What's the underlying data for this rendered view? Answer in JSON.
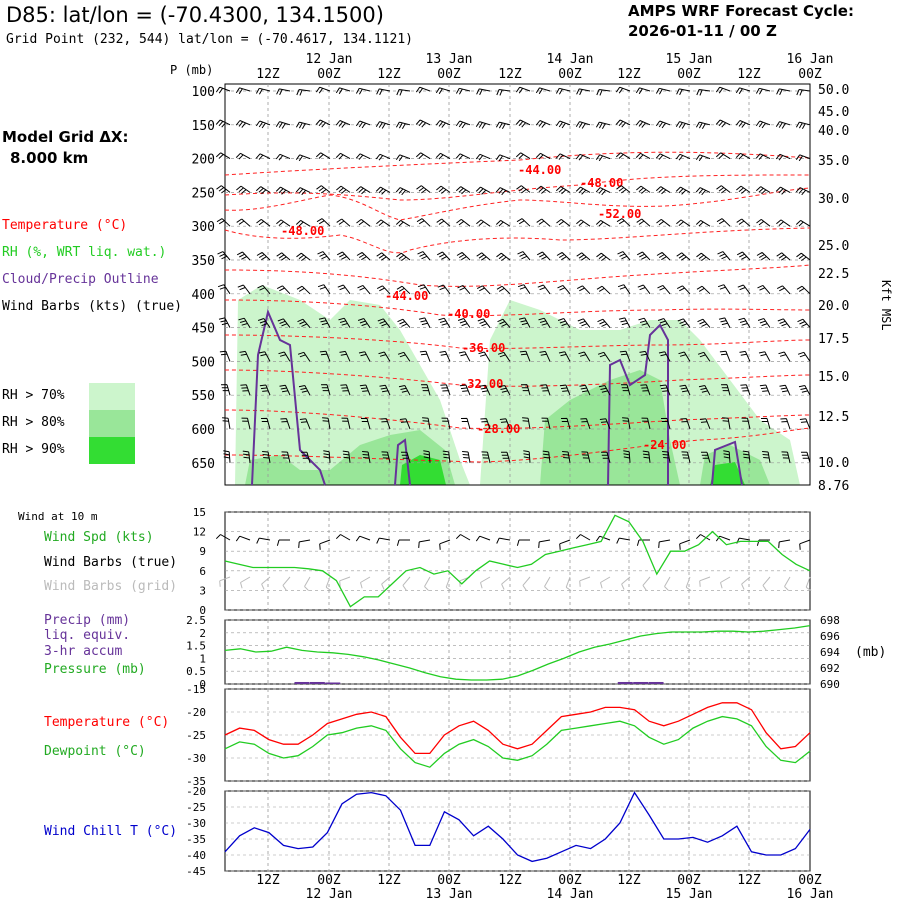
{
  "header": {
    "title": "D85:  lat/lon = (-70.4300, 134.1500)",
    "gridpoint": "Grid Point (232, 544) lat/lon = (-70.4617, 134.1121)",
    "cycle_title": "AMPS WRF Forecast Cycle:",
    "cycle_value": "2026-01-11 / 00  Z"
  },
  "legend": {
    "model_grid": "Model Grid ΔX:",
    "model_dx": "8.000 km",
    "temperature": "Temperature (°C)",
    "rh": "RH (%, WRT liq. wat.)",
    "cloud": "Cloud/Precip Outline",
    "wind_barbs": "Wind Barbs (kts) (true)",
    "rh_levels": [
      {
        "label": "RH > 70%",
        "color": "#ccf5cc"
      },
      {
        "label": "RH > 80%",
        "color": "#99e699"
      },
      {
        "label": "RH > 90%",
        "color": "#33dd33"
      }
    ]
  },
  "colors": {
    "temperature": "#ff0000",
    "dewpoint": "#22cc22",
    "rh_contour": "#ff2222",
    "cloud_outline": "#663399",
    "wind_chill": "#0000cc",
    "grid": "#999999"
  },
  "chart_data": [
    {
      "type": "heatmap",
      "ylabel_left": "P (mb)",
      "ylabel_right": "Kft MSL",
      "x_ticks_top": [
        "12Z",
        "00Z",
        "12Z",
        "00Z",
        "12Z",
        "00Z",
        "12Z",
        "00Z",
        "12Z",
        "00Z"
      ],
      "x_dates_top": [
        "12 Jan",
        "13 Jan",
        "14 Jan",
        "15 Jan",
        "16 Jan"
      ],
      "pressure_levels": [
        100,
        150,
        200,
        250,
        300,
        350,
        400,
        450,
        500,
        550,
        600,
        650
      ],
      "height_ticks": [
        "50.0",
        "45.0",
        "40.0",
        "35.0",
        "30.0",
        "25.0",
        "22.5",
        "20.0",
        "17.5",
        "15.0",
        "12.5",
        "10.0",
        "8.76"
      ],
      "temperature_labels": [
        "-44.00",
        "-48.00",
        "-52.00",
        "-48.00",
        "-44.00",
        "-40.00",
        "-36.00",
        "-32.00",
        "-28.00",
        "-24.00"
      ]
    },
    {
      "type": "line",
      "title": "Wind at 10 m",
      "series_labels": [
        "Wind Spd (kts)",
        "Wind Barbs (true)",
        "Wind Barbs (grid)"
      ],
      "ylim": [
        0,
        15
      ],
      "y_ticks": [
        "15",
        "12",
        "9",
        "6",
        "3",
        "0"
      ],
      "series": [
        {
          "name": "Wind Spd (kts)",
          "values": [
            7.5,
            7,
            6.5,
            6.5,
            6.5,
            6.5,
            6.3,
            6,
            4.5,
            0.5,
            2,
            2,
            4,
            6,
            6.5,
            5.5,
            6,
            4,
            6,
            7.5,
            7,
            6.5,
            7,
            8.5,
            9,
            9.5,
            10,
            10.5,
            14.5,
            13.5,
            10.5,
            5.5,
            9,
            9,
            10,
            12,
            10,
            10.5,
            10.5,
            10.5,
            8.5,
            7,
            6
          ]
        }
      ]
    },
    {
      "type": "line",
      "series_labels": [
        "Precip (mm)",
        "liq. equiv.",
        "3-hr accum",
        "Pressure (mb)"
      ],
      "ylim_left": [
        0,
        2.5
      ],
      "y_ticks_left": [
        "2.5",
        "2",
        "1.5",
        "1",
        "0.5",
        "0"
      ],
      "ylim_right": [
        690,
        698
      ],
      "y_ticks_right": [
        "698",
        "696",
        "694",
        "692",
        "690"
      ],
      "ylabel_right": "(mb)",
      "series": [
        {
          "name": "Pressure (mb)",
          "values": [
            694.2,
            694.4,
            694.0,
            694.1,
            694.6,
            694.2,
            694.0,
            693.9,
            693.7,
            693.4,
            693.0,
            692.5,
            692.0,
            691.4,
            690.9,
            690.6,
            690.5,
            690.5,
            690.6,
            691.0,
            691.7,
            692.5,
            693.2,
            694.0,
            694.6,
            695.0,
            695.5,
            696.0,
            696.3,
            696.5,
            696.5,
            696.5,
            696.6,
            696.6,
            696.5,
            696.6,
            696.8,
            697.0,
            697.3
          ]
        },
        {
          "name": "Precip (mm)",
          "values": [
            0,
            0,
            0,
            0,
            0,
            0.04,
            0.04,
            0.02,
            0,
            0,
            0,
            0,
            0,
            0,
            0,
            0,
            0,
            0,
            0,
            0,
            0,
            0,
            0,
            0,
            0,
            0,
            0.04,
            0.04,
            0.04,
            0,
            0,
            0,
            0,
            0,
            0,
            0,
            0,
            0,
            0
          ]
        }
      ]
    },
    {
      "type": "line",
      "series_labels": [
        "Temperature (°C)",
        "Dewpoint (°C)"
      ],
      "ylim": [
        -35,
        -15
      ],
      "y_ticks": [
        "-15",
        "-20",
        "-25",
        "-30",
        "-35"
      ],
      "series": [
        {
          "name": "Temperature (°C)",
          "values": [
            -25,
            -23.5,
            -24,
            -26,
            -27,
            -27,
            -25,
            -22.5,
            -21.5,
            -20.5,
            -20,
            -21,
            -25.5,
            -29,
            -29,
            -25,
            -23,
            -22,
            -24,
            -27,
            -28,
            -27,
            -24,
            -21,
            -20.5,
            -20,
            -19,
            -19,
            -19.5,
            -22,
            -23,
            -22,
            -20.5,
            -19,
            -18,
            -18,
            -19.5,
            -24.5,
            -28,
            -27.5,
            -24.5
          ]
        },
        {
          "name": "Dewpoint (°C)",
          "values": [
            -28,
            -26.5,
            -27,
            -29,
            -30,
            -29.5,
            -27.5,
            -25,
            -24.5,
            -23.5,
            -23,
            -24,
            -28,
            -31,
            -32,
            -29,
            -27,
            -26,
            -27.5,
            -30,
            -30.5,
            -29.5,
            -27,
            -24,
            -23.5,
            -23,
            -22.5,
            -22,
            -23,
            -25.5,
            -27,
            -26,
            -23.5,
            -22,
            -21,
            -21.5,
            -23,
            -27.5,
            -30.5,
            -31,
            -28.5
          ]
        }
      ]
    },
    {
      "type": "line",
      "series_labels": [
        "Wind Chill T (°C)"
      ],
      "ylim": [
        -45,
        -20
      ],
      "y_ticks": [
        "-20",
        "-25",
        "-30",
        "-35",
        "-40",
        "-45"
      ],
      "series": [
        {
          "name": "Wind Chill T (°C)",
          "values": [
            -39,
            -34,
            -31.5,
            -33,
            -37,
            -38,
            -37.5,
            -33,
            -24,
            -21,
            -20.5,
            -21.5,
            -26,
            -37,
            -37,
            -26.5,
            -29,
            -34,
            -31,
            -35,
            -40,
            -42,
            -41,
            -39,
            -37,
            -38,
            -35,
            -30,
            -20.5,
            -27.5,
            -35,
            -35,
            -34.5,
            -36,
            -34,
            -31,
            -39,
            -40,
            -40,
            -38,
            -32
          ]
        }
      ]
    }
  ],
  "bottom_axis": {
    "ticks": [
      "12Z",
      "00Z",
      "12Z",
      "00Z",
      "12Z",
      "00Z",
      "12Z",
      "00Z",
      "12Z",
      "00Z"
    ],
    "dates": [
      "12 Jan",
      "13 Jan",
      "14 Jan",
      "15 Jan",
      "16 Jan"
    ]
  }
}
